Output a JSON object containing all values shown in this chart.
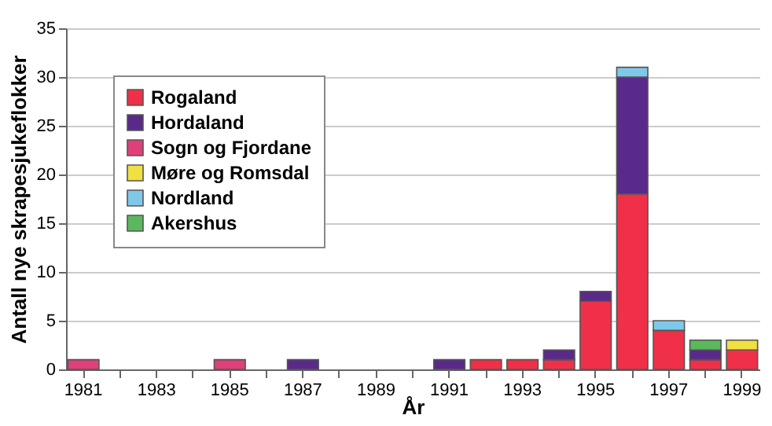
{
  "chart_data": {
    "type": "bar",
    "stacked": true,
    "xlabel": "År",
    "ylabel": "Antall nye skrapesjukeflokker",
    "categories": [
      "1981",
      null,
      "1983",
      null,
      "1985",
      null,
      "1987",
      null,
      "1989",
      null,
      "1991",
      null,
      "1993",
      null,
      "1995",
      null,
      "1997",
      null,
      "1999"
    ],
    "series": [
      {
        "name": "Rogaland",
        "color": "#f03048",
        "values": [
          null,
          null,
          null,
          null,
          null,
          null,
          null,
          null,
          null,
          null,
          null,
          1,
          1,
          1,
          7,
          18,
          4,
          1,
          2
        ]
      },
      {
        "name": "Hordaland",
        "color": "#5a2a8a",
        "values": [
          null,
          null,
          null,
          null,
          null,
          null,
          1,
          null,
          null,
          null,
          1,
          null,
          null,
          1,
          1,
          12,
          null,
          1,
          null
        ]
      },
      {
        "name": "Sogn og Fjordane",
        "color": "#e0407a",
        "values": [
          1,
          null,
          null,
          null,
          1,
          null,
          null,
          null,
          null,
          null,
          null,
          null,
          null,
          null,
          null,
          null,
          null,
          null,
          null
        ]
      },
      {
        "name": "Møre og Romsdal",
        "color": "#f0e040",
        "values": [
          null,
          null,
          null,
          null,
          null,
          null,
          null,
          null,
          null,
          null,
          null,
          null,
          null,
          null,
          null,
          null,
          null,
          null,
          1
        ]
      },
      {
        "name": "Nordland",
        "color": "#80c8e8",
        "values": [
          null,
          null,
          null,
          null,
          null,
          null,
          null,
          null,
          null,
          null,
          null,
          null,
          null,
          null,
          null,
          1,
          1,
          null,
          null
        ]
      },
      {
        "name": "Akershus",
        "color": "#5cb85c",
        "values": [
          null,
          null,
          null,
          null,
          null,
          null,
          null,
          null,
          null,
          null,
          null,
          null,
          null,
          null,
          null,
          null,
          null,
          1,
          null
        ]
      }
    ],
    "ylim": [
      0,
      35
    ],
    "yticks": [
      0,
      5,
      10,
      15,
      20,
      25,
      30,
      35
    ],
    "grid": "y",
    "legend": "top left"
  }
}
